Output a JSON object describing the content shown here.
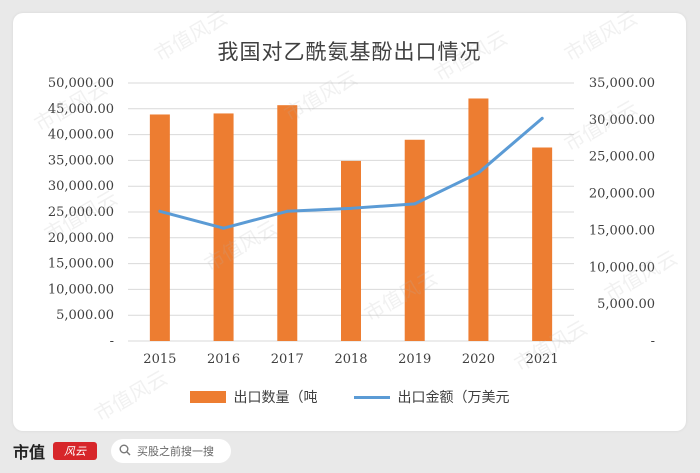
{
  "chart_data": {
    "type": "bar+line",
    "title": "我国对乙酰氨基酚出口情况",
    "categories": [
      "2015",
      "2016",
      "2017",
      "2018",
      "2019",
      "2020",
      "2021"
    ],
    "series": [
      {
        "name": "出口数量（吨",
        "type": "bar",
        "axis": "left",
        "color": "#ed7d31",
        "values": [
          43900,
          44100,
          45700,
          34900,
          39000,
          47000,
          37500
        ]
      },
      {
        "name": "出口金额（万美元",
        "type": "line",
        "axis": "right",
        "color": "#5b9bd5",
        "values": [
          17600,
          15300,
          17600,
          18000,
          18600,
          22800,
          30200
        ]
      }
    ],
    "ylim_left": [
      0,
      50000
    ],
    "yticks_left": [
      "-",
      "5,000.00",
      "10,000.00",
      "15,000.00",
      "20,000.00",
      "25,000.00",
      "30,000.00",
      "35,000.00",
      "40,000.00",
      "45,000.00",
      "50,000.00"
    ],
    "ylim_right": [
      0,
      35000
    ],
    "yticks_right": [
      "-",
      "5,000.00",
      "10,000.00",
      "15,000.00",
      "20,000.00",
      "25,000.00",
      "30,000.00",
      "35,000.00"
    ],
    "grid": true,
    "legend_position": "bottom"
  },
  "footer": {
    "brand": "市值",
    "logo_text": "风云",
    "search_placeholder": "买股之前搜一搜",
    "icon": "search-icon"
  },
  "watermark": "市值风云"
}
